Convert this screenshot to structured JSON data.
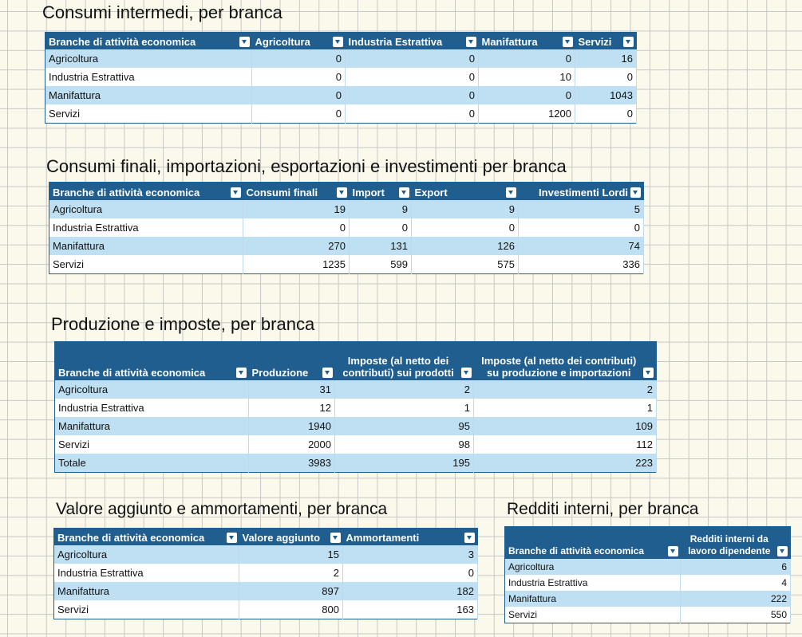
{
  "t1": {
    "title": "Consumi intermedi, per branca",
    "headers": [
      "Branche di attività economica",
      "Agricoltura",
      "Industria Estrattiva",
      "Manifattura",
      "Servizi"
    ],
    "rows": [
      [
        "Agricoltura",
        "0",
        "0",
        "0",
        "16"
      ],
      [
        "Industria Estrattiva",
        "0",
        "0",
        "10",
        "0"
      ],
      [
        "Manifattura",
        "0",
        "0",
        "0",
        "1043"
      ],
      [
        "Servizi",
        "0",
        "0",
        "1200",
        "0"
      ]
    ]
  },
  "t2": {
    "title": "Consumi finali, importazioni, esportazioni e investimenti per branca",
    "headers": [
      "Branche di attività economica",
      "Consumi finali",
      "Import",
      "Export",
      "Investimenti Lordi"
    ],
    "rows": [
      [
        "Agricoltura",
        "19",
        "9",
        "9",
        "5"
      ],
      [
        "Industria Estrattiva",
        "0",
        "0",
        "0",
        "0"
      ],
      [
        "Manifattura",
        "270",
        "131",
        "126",
        "74"
      ],
      [
        "Servizi",
        "1235",
        "599",
        "575",
        "336"
      ]
    ]
  },
  "t3": {
    "title": "Produzione e imposte, per branca",
    "headers": [
      "Branche di attività economica",
      "Produzione",
      "Imposte (al netto dei contributi) sui prodotti",
      "Imposte (al netto dei contributi) su produzione e importazioni"
    ],
    "rows": [
      [
        "Agricoltura",
        "31",
        "2",
        "2"
      ],
      [
        "Industria Estrattiva",
        "12",
        "1",
        "1"
      ],
      [
        "Manifattura",
        "1940",
        "95",
        "109"
      ],
      [
        "Servizi",
        "2000",
        "98",
        "112"
      ],
      [
        "Totale",
        "3983",
        "195",
        "223"
      ]
    ]
  },
  "t4": {
    "title": "Valore aggiunto e ammortamenti, per branca",
    "headers": [
      "Branche di attività economica",
      "Valore aggiunto",
      "Ammortamenti"
    ],
    "rows": [
      [
        "Agricoltura",
        "15",
        "3"
      ],
      [
        "Industria Estrattiva",
        "2",
        "0"
      ],
      [
        "Manifattura",
        "897",
        "182"
      ],
      [
        "Servizi",
        "800",
        "163"
      ]
    ]
  },
  "t5": {
    "title": "Redditi interni, per branca",
    "headers": [
      "Branche di attività economica",
      "Redditi interni da lavoro dipendente"
    ],
    "rows": [
      [
        "Agricoltura",
        "6"
      ],
      [
        "Industria Estrattiva",
        "4"
      ],
      [
        "Manifattura",
        "222"
      ],
      [
        "Servizi",
        "550"
      ]
    ]
  }
}
